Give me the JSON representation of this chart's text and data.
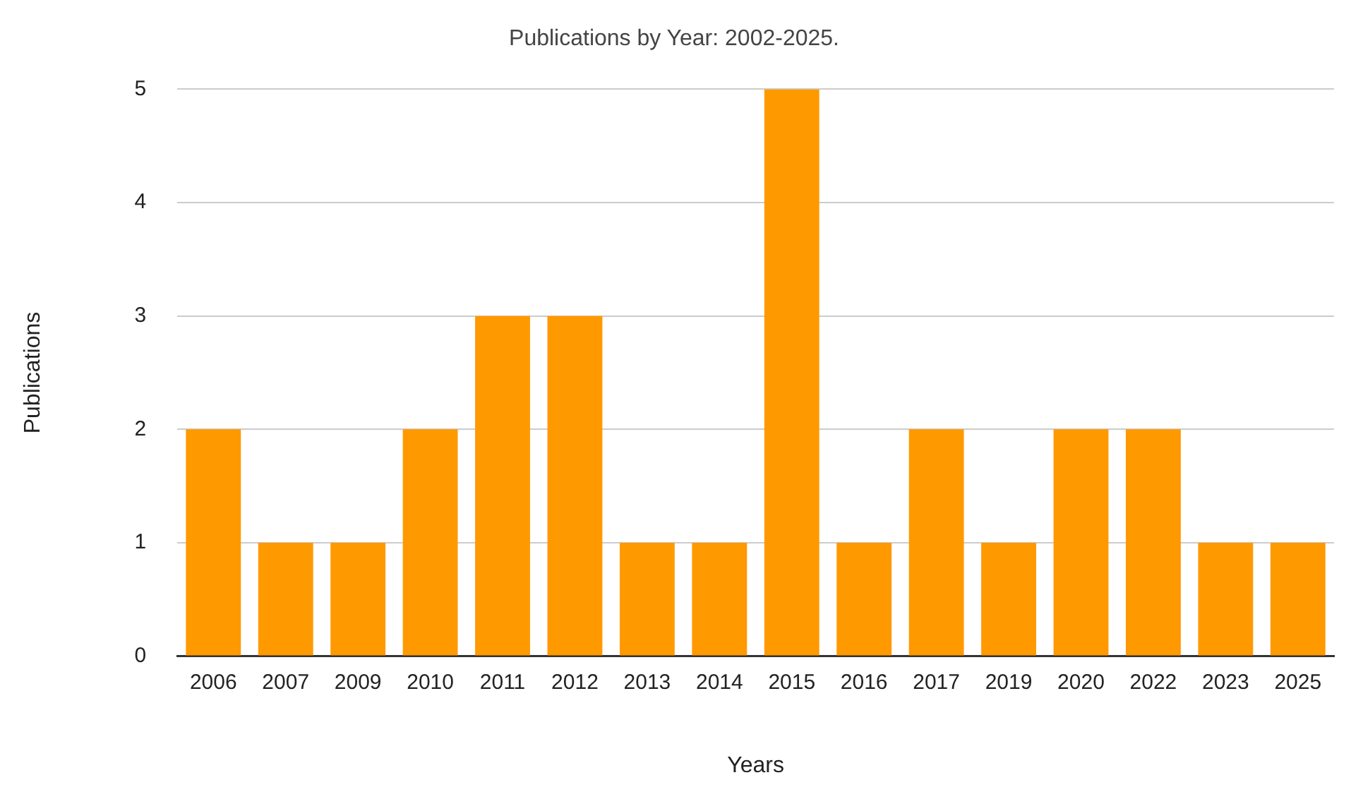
{
  "chart_data": {
    "type": "bar",
    "title": "Publications by Year: 2002-2025.",
    "xlabel": "Years",
    "ylabel": "Publications",
    "categories": [
      "2006",
      "2007",
      "2009",
      "2010",
      "2011",
      "2012",
      "2013",
      "2014",
      "2015",
      "2016",
      "2017",
      "2019",
      "2020",
      "2022",
      "2023",
      "2025"
    ],
    "values": [
      2,
      1,
      1,
      2,
      3,
      3,
      1,
      1,
      5,
      1,
      2,
      1,
      2,
      2,
      1,
      1
    ],
    "color": "#ff9900",
    "ylim": [
      0,
      5
    ],
    "yticks": [
      0,
      1,
      2,
      3,
      4,
      5
    ],
    "grid": "y",
    "legend": false
  }
}
